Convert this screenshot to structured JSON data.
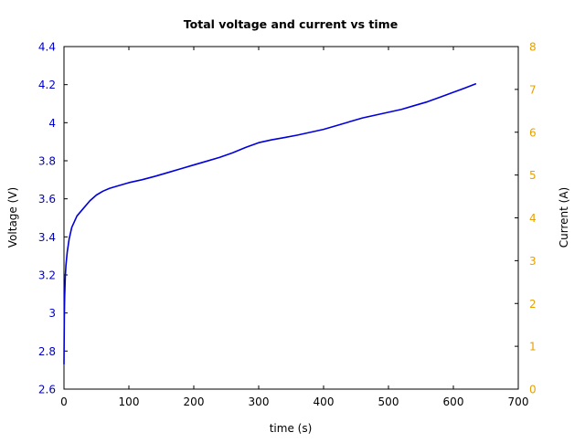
{
  "chart_data": {
    "type": "line",
    "title": "Total voltage and current vs time",
    "xlabel": "time (s)",
    "ylabel": "Voltage (V)",
    "y2label": "Current (A)",
    "xlim": [
      0,
      700
    ],
    "ylim": [
      2.6,
      4.4
    ],
    "y2lim": [
      0,
      8
    ],
    "xticks": [
      "0",
      "100",
      "200",
      "300",
      "400",
      "500",
      "600",
      "700"
    ],
    "yticks": [
      "2.6",
      "2.8",
      "3",
      "3.2",
      "3.4",
      "3.6",
      "3.8",
      "4",
      "4.2",
      "4.4"
    ],
    "y2ticks": [
      "0",
      "1",
      "2",
      "3",
      "4",
      "5",
      "6",
      "7",
      "8"
    ],
    "grid": false,
    "colors": {
      "voltage": "#0000dd",
      "left_axis": "#0000cc",
      "right_axis": "#e6a000"
    },
    "series": [
      {
        "axis": "left",
        "x": [
          0,
          0.5,
          1,
          2,
          3,
          5,
          8,
          12,
          16,
          20,
          30,
          40,
          50,
          60,
          70,
          80,
          100,
          120,
          140,
          160,
          180,
          200,
          220,
          240,
          260,
          280,
          300,
          320,
          340,
          360,
          380,
          400,
          420,
          440,
          460,
          480,
          500,
          520,
          540,
          560,
          580,
          600,
          620,
          635
        ],
        "y": [
          2.73,
          2.98,
          3.08,
          3.19,
          3.25,
          3.32,
          3.39,
          3.45,
          3.48,
          3.51,
          3.55,
          3.59,
          3.62,
          3.64,
          3.655,
          3.665,
          3.685,
          3.7,
          3.718,
          3.738,
          3.758,
          3.778,
          3.798,
          3.818,
          3.842,
          3.87,
          3.895,
          3.91,
          3.922,
          3.935,
          3.95,
          3.965,
          3.985,
          4.005,
          4.025,
          4.04,
          4.055,
          4.07,
          4.09,
          4.11,
          4.135,
          4.16,
          4.185,
          4.205
        ]
      }
    ]
  }
}
